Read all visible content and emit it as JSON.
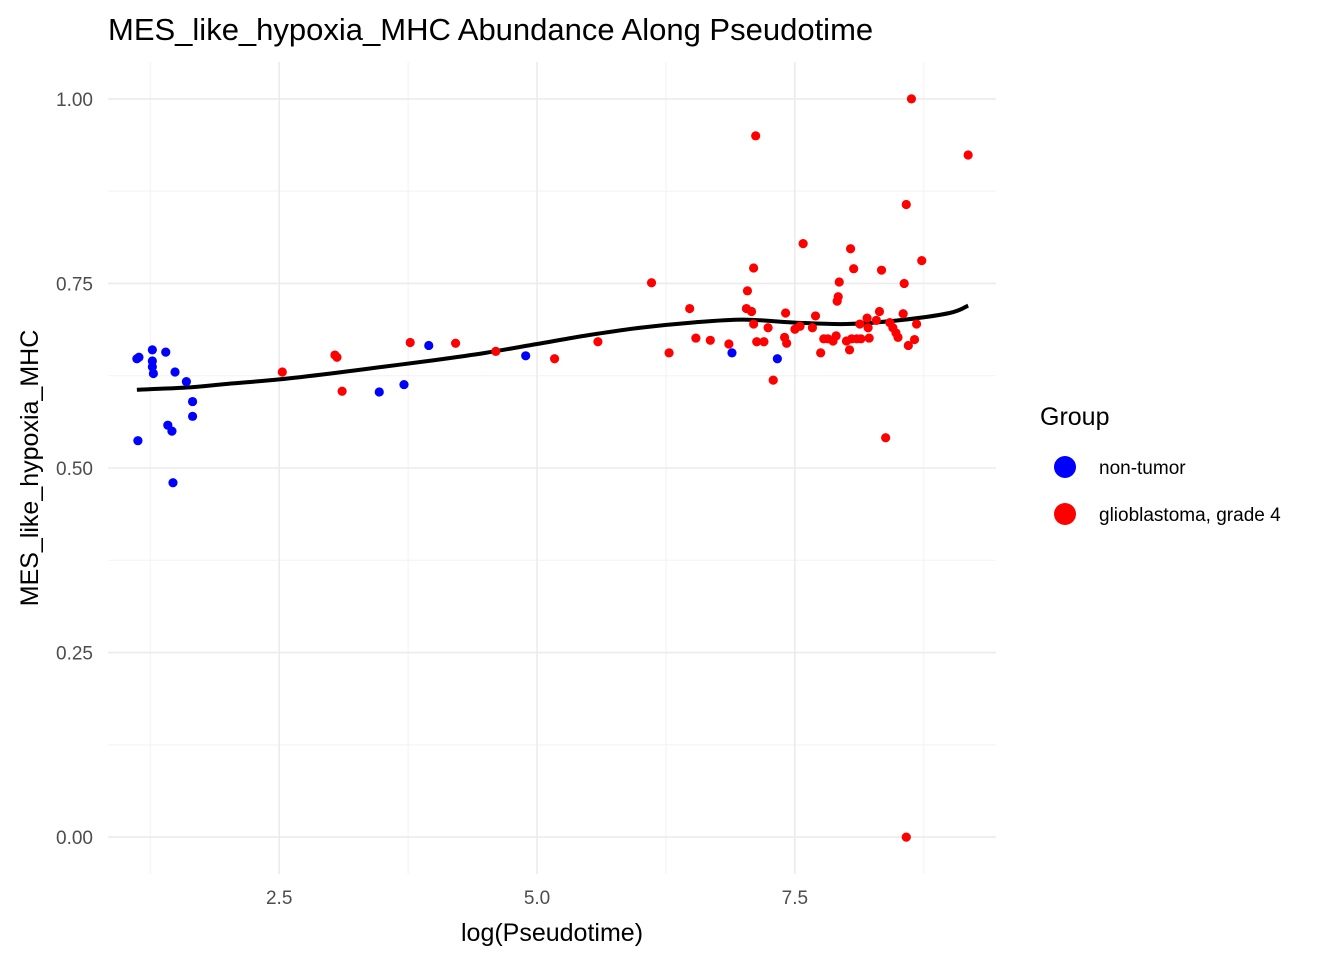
{
  "chart_data": {
    "type": "scatter",
    "title": "MES_like_hypoxia_MHC Abundance Along Pseudotime",
    "xlabel": "log(Pseudotime)",
    "ylabel": "MES_like_hypoxia_MHC",
    "xlim": [
      0.84,
      9.45
    ],
    "ylim": [
      -0.05,
      1.05
    ],
    "x_ticks": [
      2.5,
      5.0,
      7.5
    ],
    "x_tick_labels": [
      "2.5",
      "5.0",
      "7.5"
    ],
    "y_ticks": [
      0.0,
      0.25,
      0.5,
      0.75,
      1.0
    ],
    "y_tick_labels": [
      "0.00",
      "0.25",
      "0.50",
      "0.75",
      "1.00"
    ],
    "grid": true,
    "legend": {
      "title": "Group",
      "placement": "right",
      "entries": [
        {
          "label": "non-tumor",
          "color": "#0000FF"
        },
        {
          "label": "glioblastoma, grade 4",
          "color": "#FF0000"
        }
      ]
    },
    "series": [
      {
        "name": "non-tumor",
        "color": "#0000FF",
        "points": [
          [
            1.12,
            0.648
          ],
          [
            1.14,
            0.65
          ],
          [
            1.27,
            0.66
          ],
          [
            1.27,
            0.645
          ],
          [
            1.27,
            0.637
          ],
          [
            1.28,
            0.628
          ],
          [
            1.4,
            0.657
          ],
          [
            1.42,
            0.558
          ],
          [
            1.46,
            0.55
          ],
          [
            1.49,
            0.63
          ],
          [
            1.6,
            0.617
          ],
          [
            1.66,
            0.59
          ],
          [
            1.66,
            0.57
          ],
          [
            1.13,
            0.537
          ],
          [
            1.47,
            0.48
          ],
          [
            3.47,
            0.603
          ],
          [
            3.71,
            0.613
          ],
          [
            3.95,
            0.666
          ],
          [
            4.89,
            0.652
          ],
          [
            6.89,
            0.656
          ],
          [
            7.33,
            0.648
          ]
        ]
      },
      {
        "name": "glioblastoma, grade 4",
        "color": "#FF0000",
        "points": [
          [
            2.53,
            0.63
          ],
          [
            3.04,
            0.653
          ],
          [
            3.06,
            0.65
          ],
          [
            3.11,
            0.604
          ],
          [
            3.77,
            0.67
          ],
          [
            4.21,
            0.669
          ],
          [
            4.6,
            0.658
          ],
          [
            5.17,
            0.648
          ],
          [
            5.59,
            0.671
          ],
          [
            6.11,
            0.751
          ],
          [
            6.28,
            0.656
          ],
          [
            6.48,
            0.716
          ],
          [
            6.54,
            0.676
          ],
          [
            6.68,
            0.673
          ],
          [
            6.86,
            0.668
          ],
          [
            7.03,
            0.716
          ],
          [
            7.04,
            0.74
          ],
          [
            7.08,
            0.712
          ],
          [
            7.1,
            0.695
          ],
          [
            7.1,
            0.771
          ],
          [
            7.12,
            0.95
          ],
          [
            7.13,
            0.671
          ],
          [
            7.2,
            0.671
          ],
          [
            7.24,
            0.69
          ],
          [
            7.29,
            0.619
          ],
          [
            7.4,
            0.677
          ],
          [
            7.41,
            0.71
          ],
          [
            7.42,
            0.669
          ],
          [
            7.5,
            0.688
          ],
          [
            7.55,
            0.692
          ],
          [
            7.58,
            0.804
          ],
          [
            7.67,
            0.69
          ],
          [
            7.7,
            0.706
          ],
          [
            7.75,
            0.656
          ],
          [
            7.78,
            0.675
          ],
          [
            7.82,
            0.675
          ],
          [
            7.87,
            0.672
          ],
          [
            7.9,
            0.679
          ],
          [
            7.91,
            0.726
          ],
          [
            7.92,
            0.732
          ],
          [
            7.93,
            0.752
          ],
          [
            8.0,
            0.672
          ],
          [
            8.03,
            0.66
          ],
          [
            8.04,
            0.797
          ],
          [
            8.05,
            0.675
          ],
          [
            8.07,
            0.77
          ],
          [
            8.1,
            0.675
          ],
          [
            8.13,
            0.695
          ],
          [
            8.14,
            0.675
          ],
          [
            8.2,
            0.703
          ],
          [
            8.21,
            0.69
          ],
          [
            8.22,
            0.676
          ],
          [
            8.29,
            0.7
          ],
          [
            8.32,
            0.712
          ],
          [
            8.34,
            0.768
          ],
          [
            8.38,
            0.541
          ],
          [
            8.42,
            0.697
          ],
          [
            8.45,
            0.69
          ],
          [
            8.48,
            0.683
          ],
          [
            8.5,
            0.677
          ],
          [
            8.55,
            0.709
          ],
          [
            8.56,
            0.75
          ],
          [
            8.58,
            0.857
          ],
          [
            8.58,
            0.0
          ],
          [
            8.6,
            0.666
          ],
          [
            8.63,
            1.0
          ],
          [
            8.66,
            0.674
          ],
          [
            8.68,
            0.695
          ],
          [
            8.73,
            0.781
          ],
          [
            9.18,
            0.924
          ]
        ]
      }
    ],
    "trend_line": {
      "color": "#000000",
      "points": [
        [
          1.12,
          0.606
        ],
        [
          1.6,
          0.609
        ],
        [
          2.0,
          0.614
        ],
        [
          2.5,
          0.62
        ],
        [
          3.0,
          0.628
        ],
        [
          3.5,
          0.637
        ],
        [
          4.0,
          0.646
        ],
        [
          4.5,
          0.656
        ],
        [
          5.0,
          0.668
        ],
        [
          5.5,
          0.68
        ],
        [
          6.0,
          0.69
        ],
        [
          6.5,
          0.697
        ],
        [
          7.0,
          0.701
        ],
        [
          7.5,
          0.697
        ],
        [
          8.0,
          0.695
        ],
        [
          8.5,
          0.7
        ],
        [
          9.0,
          0.71
        ],
        [
          9.18,
          0.72
        ]
      ]
    }
  }
}
